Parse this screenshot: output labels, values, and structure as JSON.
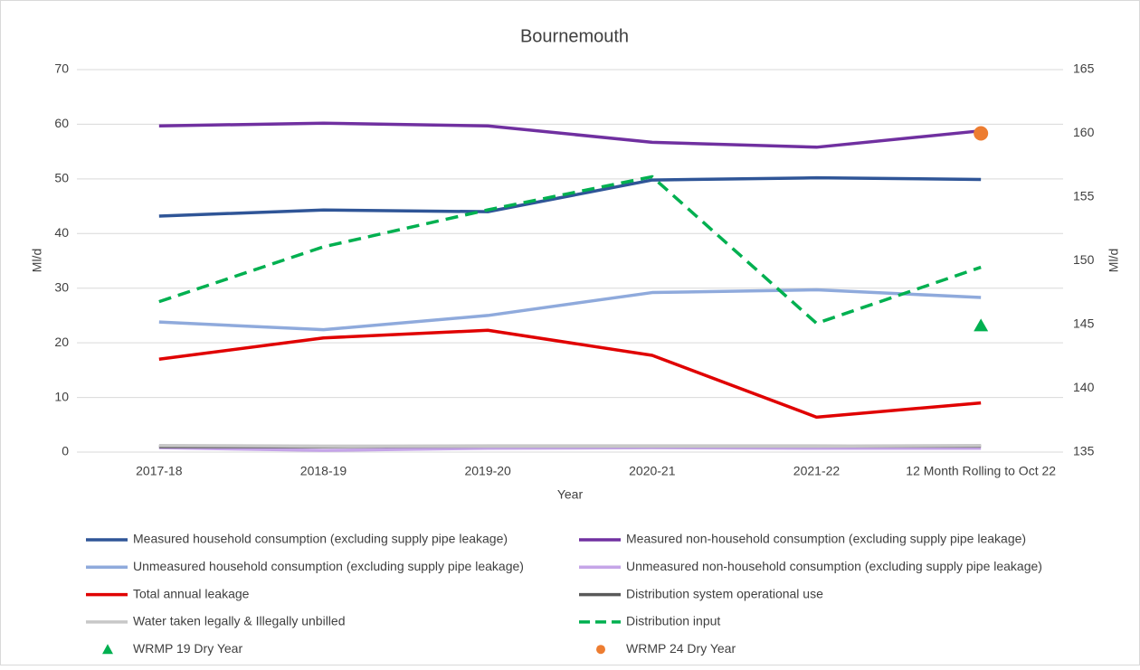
{
  "chart_data": {
    "type": "line",
    "title": "Bournemouth",
    "x_label": "Year",
    "y_label": "Ml/d",
    "y2_label": "Ml/d",
    "categories": [
      "2017-18",
      "2018-19",
      "2019-20",
      "2020-21",
      "2021-22",
      "12 Month Rolling to Oct 22"
    ],
    "ylim": [
      0,
      70
    ],
    "yticks": [
      0,
      10,
      20,
      30,
      40,
      50,
      60,
      70
    ],
    "y2lim": [
      135,
      165
    ],
    "y2ticks": [
      135,
      140,
      145,
      150,
      155,
      160,
      165
    ],
    "grid": true,
    "legend": "bottom",
    "series": [
      {
        "name": "Measured household consumption (excluding supply pipe leakage)",
        "color": "#2f5597",
        "values": [
          43.2,
          44.3,
          44.0,
          49.8,
          50.2,
          49.9
        ]
      },
      {
        "name": "Measured non-household consumption (excluding supply pipe leakage)",
        "color": "#7030a0",
        "values": [
          59.7,
          60.2,
          59.7,
          56.7,
          55.8,
          58.8
        ]
      },
      {
        "name": "Unmeasured household consumption (excluding supply pipe leakage)",
        "color": "#8faadc",
        "values": [
          23.8,
          22.4,
          25.0,
          29.2,
          29.7,
          28.3
        ]
      },
      {
        "name": "Unmeasured non-household consumption (excluding supply pipe leakage)",
        "color": "#c5a5e8",
        "values": [
          0.8,
          0.3,
          0.7,
          0.8,
          0.7,
          0.7
        ]
      },
      {
        "name": "Total annual leakage",
        "color": "#e00000",
        "values": [
          17.0,
          20.9,
          22.3,
          17.7,
          6.4,
          9.0
        ]
      },
      {
        "name": "Distribution system operational use",
        "color": "#595959",
        "values": [
          1.0,
          1.0,
          1.1,
          1.1,
          1.1,
          1.1
        ]
      },
      {
        "name": "Water taken legally & Illegally unbilled",
        "color": "#c8c8c8",
        "values": [
          1.2,
          1.1,
          1.1,
          1.1,
          1.1,
          1.2
        ]
      },
      {
        "name": "Distribution input",
        "color": "#00b050",
        "dash": true,
        "axis": "y2",
        "values": [
          146.8,
          151.1,
          154.0,
          156.6,
          145.1,
          149.5
        ]
      },
      {
        "name": "WRMP 19 Dry Year",
        "color": "#00b050",
        "marker": "triangle",
        "axis": "y2",
        "values": [
          null,
          null,
          null,
          null,
          null,
          144.9
        ]
      },
      {
        "name": "WRMP 24 Dry Year",
        "color": "#ed7d31",
        "marker": "circle",
        "axis": "y2",
        "values": [
          null,
          null,
          null,
          null,
          null,
          160.0
        ]
      }
    ]
  }
}
